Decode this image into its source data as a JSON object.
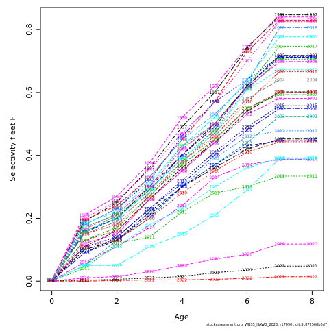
{
  "chart_data": {
    "type": "line",
    "title": "",
    "xlabel": "Age",
    "ylabel": "Selectivity fleet F",
    "xlim": [
      -0.35,
      8.35
    ],
    "ylim": [
      -0.03,
      0.87
    ],
    "x_ticks": [
      0,
      2,
      4,
      6,
      8
    ],
    "y_ticks": [
      0.0,
      0.2,
      0.4,
      0.6,
      0.8
    ],
    "x": [
      0,
      1,
      2,
      3,
      4,
      5,
      6,
      7
    ],
    "grid": false,
    "legend": "none",
    "end_label_x": 8,
    "series": [
      {
        "name": "1990",
        "color": "#FF00FF",
        "values": [
          0.005,
          0.21,
          0.27,
          0.375,
          0.52,
          0.62,
          0.745,
          0.84
        ]
      },
      {
        "name": "1991",
        "color": "#FF00FF",
        "values": [
          0.004,
          0.2,
          0.255,
          0.355,
          0.47,
          0.57,
          0.7,
          0.825
        ]
      },
      {
        "name": "1997",
        "color": "#000000",
        "values": [
          0.004,
          0.19,
          0.25,
          0.36,
          0.49,
          0.6,
          0.74,
          0.847
        ]
      },
      {
        "name": "1998",
        "color": "#FF0000",
        "values": [
          0.004,
          0.195,
          0.24,
          0.33,
          0.45,
          0.57,
          0.73,
          0.83
        ]
      },
      {
        "name": "1994",
        "color": "#0000FF",
        "values": [
          0.003,
          0.18,
          0.23,
          0.32,
          0.46,
          0.57,
          0.64,
          0.714
        ]
      },
      {
        "name": "2018",
        "color": "#2E8BFF",
        "values": [
          0.004,
          0.18,
          0.23,
          0.33,
          0.45,
          0.53,
          0.63,
          0.806
        ]
      },
      {
        "name": "2001",
        "color": "#00FFFF",
        "values": [
          0.004,
          0.185,
          0.22,
          0.31,
          0.43,
          0.52,
          0.64,
          0.777
        ]
      },
      {
        "name": "2017",
        "color": "#00C000",
        "values": [
          0.003,
          0.17,
          0.215,
          0.3,
          0.43,
          0.5,
          0.62,
          0.747
        ]
      },
      {
        "name": "1992",
        "color": "#000000",
        "values": [
          0.003,
          0.16,
          0.2,
          0.3,
          0.4,
          0.5,
          0.62,
          0.718
        ]
      },
      {
        "name": "1995",
        "color": "#0000FF",
        "values": [
          0.003,
          0.155,
          0.2,
          0.29,
          0.4,
          0.49,
          0.62,
          0.712
        ]
      },
      {
        "name": "1996",
        "color": "#00AA00",
        "values": [
          0.003,
          0.155,
          0.21,
          0.29,
          0.39,
          0.48,
          0.61,
          0.706
        ]
      },
      {
        "name": "2008",
        "color": "#FF00FF",
        "values": [
          0.003,
          0.165,
          0.215,
          0.3,
          0.42,
          0.5,
          0.615,
          0.698
        ]
      },
      {
        "name": "2019",
        "color": "#00FFFF",
        "values": [
          0.003,
          0.16,
          0.2,
          0.29,
          0.39,
          0.47,
          0.61,
          0.672
        ]
      },
      {
        "name": "2016",
        "color": "#FF0000",
        "values": [
          0.003,
          0.15,
          0.18,
          0.27,
          0.38,
          0.46,
          0.57,
          0.666
        ]
      },
      {
        "name": "2004",
        "color": "#7F7F7F",
        "values": [
          0.003,
          0.15,
          0.19,
          0.28,
          0.38,
          0.47,
          0.58,
          0.64
        ]
      },
      {
        "name": "2009",
        "color": "#000000",
        "values": [
          0.003,
          0.11,
          0.16,
          0.26,
          0.36,
          0.44,
          0.54,
          0.602
        ]
      },
      {
        "name": "2000",
        "color": "#FF0000",
        "values": [
          0.003,
          0.13,
          0.16,
          0.26,
          0.35,
          0.45,
          0.55,
          0.6
        ]
      },
      {
        "name": "2007",
        "color": "#00AA00",
        "values": [
          0.003,
          0.13,
          0.17,
          0.27,
          0.37,
          0.45,
          0.55,
          0.593
        ]
      },
      {
        "name": "2002",
        "color": "#FF00FF",
        "values": [
          0.003,
          0.12,
          0.15,
          0.26,
          0.35,
          0.44,
          0.53,
          0.581
        ]
      },
      {
        "name": "2015",
        "color": "#000080",
        "values": [
          0.002,
          0.09,
          0.14,
          0.23,
          0.32,
          0.41,
          0.49,
          0.558
        ]
      },
      {
        "name": "2006",
        "color": "#0000FF",
        "values": [
          0.002,
          0.11,
          0.14,
          0.23,
          0.31,
          0.4,
          0.48,
          0.549
        ]
      },
      {
        "name": "2003",
        "color": "#00A0A0",
        "values": [
          0.002,
          0.05,
          0.13,
          0.2,
          0.3,
          0.37,
          0.44,
          0.524
        ]
      },
      {
        "name": "2012",
        "color": "#2E8BFF",
        "values": [
          0.002,
          0.1,
          0.13,
          0.22,
          0.3,
          0.39,
          0.46,
          0.478
        ]
      },
      {
        "name": "1993",
        "color": "#000000",
        "values": [
          0.002,
          0.1,
          0.13,
          0.22,
          0.3,
          0.36,
          0.42,
          0.452
        ]
      },
      {
        "name": "2005",
        "color": "#0000CC",
        "values": [
          0.002,
          0.09,
          0.13,
          0.21,
          0.3,
          0.37,
          0.43,
          0.447
        ]
      },
      {
        "name": "2010",
        "color": "#FF0000",
        "values": [
          0.002,
          0.11,
          0.13,
          0.2,
          0.28,
          0.35,
          0.41,
          0.443
        ]
      },
      {
        "name": "2014",
        "color": "#FF00FF",
        "values": [
          0.002,
          0.06,
          0.11,
          0.17,
          0.24,
          0.33,
          0.37,
          0.387
        ]
      },
      {
        "name": "2013",
        "color": "#00FFFF",
        "values": [
          0.002,
          0.05,
          0.11,
          0.18,
          0.23,
          0.3,
          0.36,
          0.392
        ]
      },
      {
        "name": "2011",
        "color": "#00C000",
        "values": [
          0.002,
          0.04,
          0.12,
          0.14,
          0.22,
          0.28,
          0.3,
          0.334
        ]
      },
      {
        "name": "2019b",
        "label": "2019",
        "color": "#00FFFF",
        "values": [
          0.002,
          0.05,
          0.05,
          0.11,
          0.15,
          0.21,
          0.29,
          0.39
        ]
      },
      {
        "name": "2020",
        "color": "#FF00FF",
        "values": [
          0.001,
          0.01,
          0.015,
          0.03,
          0.05,
          0.07,
          0.085,
          0.118
        ]
      },
      {
        "name": "2021",
        "color": "#000000",
        "values": [
          0.001,
          0.003,
          0.006,
          0.01,
          0.015,
          0.027,
          0.035,
          0.048
        ]
      },
      {
        "name": "2022",
        "color": "#FF0000",
        "values": [
          0.0,
          0.0,
          0.002,
          0.004,
          0.004,
          0.006,
          0.009,
          0.014
        ]
      }
    ]
  },
  "caption": "stockassessment.org, WBSS_HAWG_2023, r17090 , git:3c872568b0d7"
}
